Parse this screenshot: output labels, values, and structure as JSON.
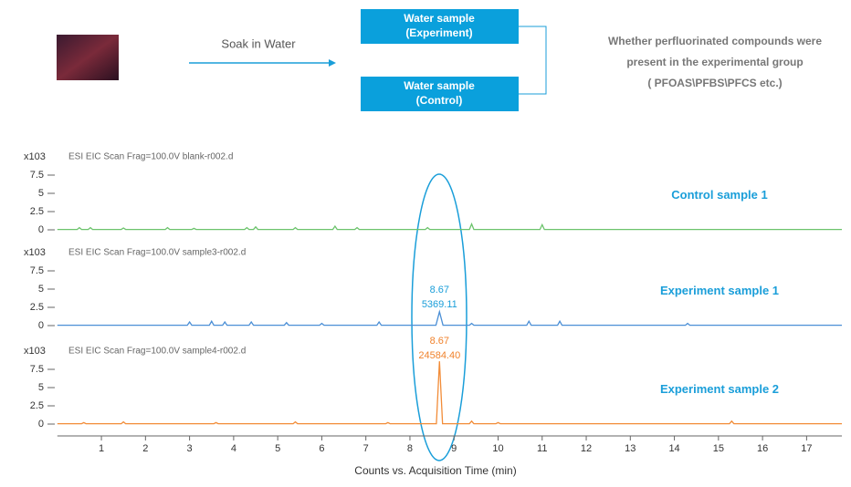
{
  "diagram": {
    "arrow_label": "Soak in Water",
    "boxes": [
      {
        "lines": [
          "Water sample",
          "(Experiment)"
        ]
      },
      {
        "lines": [
          "Water sample",
          "(Control)"
        ]
      }
    ],
    "question": {
      "lines": [
        "Whether perfluorinated compounds were",
        "present in the experimental group",
        "( PFOAS\\PFBS\\PFCS etc.)"
      ]
    }
  },
  "chart_data": [
    {
      "type": "line",
      "header": "ESI EIC Scan Frag=100.0V blank-r002.d",
      "y_unit": "x103",
      "legend_color": "#1a9ed9",
      "xlim": [
        0,
        17.8
      ],
      "ylim": [
        -0.8,
        9.5
      ],
      "yticks": [
        0,
        2.5,
        5,
        7.5
      ],
      "series": [
        {
          "name": "Control sample 1",
          "color": "#6cc36c",
          "x": [
            0,
            0.45,
            0.5,
            0.55,
            0.7,
            0.75,
            0.8,
            1.45,
            1.5,
            1.55,
            2.45,
            2.5,
            2.55,
            3.05,
            3.1,
            3.15,
            4.25,
            4.3,
            4.35,
            4.45,
            4.5,
            4.55,
            5.35,
            5.4,
            5.45,
            6.25,
            6.3,
            6.35,
            6.75,
            6.8,
            6.85,
            8.35,
            8.4,
            8.45,
            9.35,
            9.4,
            9.45,
            10.95,
            11.0,
            11.05,
            17.8
          ],
          "values": [
            0.05,
            0.05,
            0.3,
            0.05,
            0.05,
            0.3,
            0.05,
            0.05,
            0.25,
            0.05,
            0.05,
            0.3,
            0.05,
            0.05,
            0.2,
            0.05,
            0.05,
            0.3,
            0.05,
            0.05,
            0.4,
            0.05,
            0.05,
            0.3,
            0.05,
            0.05,
            0.5,
            0.05,
            0.05,
            0.3,
            0.05,
            0.05,
            0.3,
            0.05,
            0.05,
            0.8,
            0.05,
            0.05,
            0.7,
            0.05,
            0.05
          ]
        }
      ]
    },
    {
      "type": "line",
      "header": "ESI EIC Scan Frag=100.0V sample3-r002.d",
      "y_unit": "x103",
      "legend_color": "#1a9ed9",
      "annotations": [
        "8.67",
        "5369.11"
      ],
      "annotation_color": "#1a9ed9",
      "xlim": [
        0,
        17.8
      ],
      "ylim": [
        -0.8,
        9.5
      ],
      "yticks": [
        0,
        2.5,
        5,
        7.5
      ],
      "series": [
        {
          "name": "Experiment sample 1",
          "color": "#4b8fd6",
          "x": [
            0,
            2.95,
            3.0,
            3.05,
            3.45,
            3.5,
            3.55,
            3.75,
            3.8,
            3.85,
            4.35,
            4.4,
            4.45,
            5.15,
            5.2,
            5.25,
            5.95,
            6.0,
            6.05,
            7.25,
            7.3,
            7.35,
            8.59,
            8.67,
            8.75,
            9.35,
            9.4,
            9.45,
            10.65,
            10.7,
            10.75,
            11.35,
            11.4,
            11.45,
            14.25,
            14.3,
            14.35,
            17.8
          ],
          "values": [
            0.05,
            0.05,
            0.5,
            0.05,
            0.05,
            0.6,
            0.05,
            0.05,
            0.5,
            0.05,
            0.05,
            0.5,
            0.05,
            0.05,
            0.4,
            0.05,
            0.05,
            0.3,
            0.05,
            0.05,
            0.5,
            0.05,
            0.05,
            1.9,
            0.05,
            0.05,
            0.3,
            0.05,
            0.05,
            0.6,
            0.05,
            0.05,
            0.6,
            0.05,
            0.05,
            0.3,
            0.05,
            0.05
          ]
        }
      ]
    },
    {
      "type": "line",
      "header": "ESI EIC Scan Frag=100.0V sample4-r002.d",
      "y_unit": "x103",
      "legend_color": "#1a9ed9",
      "annotations": [
        "8.67",
        "24584.40"
      ],
      "annotation_color": "#f0822c",
      "x_label": "Counts vs. Acquisition Time (min)",
      "xlim": [
        0,
        17.8
      ],
      "xticks": [
        1,
        2,
        3,
        4,
        5,
        6,
        7,
        8,
        9,
        10,
        11,
        12,
        13,
        14,
        15,
        16,
        17
      ],
      "ylim": [
        -0.8,
        9.5
      ],
      "yticks": [
        0,
        2.5,
        5,
        7.5
      ],
      "series": [
        {
          "name": "Experiment sample 2",
          "color": "#f28c38",
          "x": [
            0,
            0.55,
            0.6,
            0.65,
            1.45,
            1.5,
            1.55,
            3.55,
            3.6,
            3.65,
            5.35,
            5.4,
            5.45,
            7.45,
            7.5,
            7.55,
            8.6,
            8.67,
            8.74,
            9.35,
            9.4,
            9.45,
            9.95,
            10.0,
            10.05,
            15.25,
            15.3,
            15.35,
            17.8
          ],
          "values": [
            0.05,
            0.05,
            0.2,
            0.05,
            0.05,
            0.3,
            0.05,
            0.05,
            0.2,
            0.05,
            0.05,
            0.3,
            0.05,
            0.05,
            0.2,
            0.05,
            0.05,
            8.6,
            0.05,
            0.05,
            0.4,
            0.05,
            0.05,
            0.2,
            0.05,
            0.05,
            0.4,
            0.05,
            0.05
          ]
        }
      ]
    }
  ]
}
